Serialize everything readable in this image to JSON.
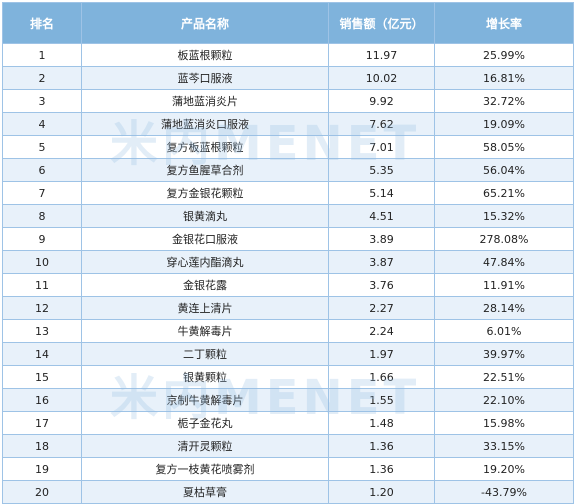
{
  "table": {
    "headers": [
      "排名",
      "产品名称",
      "销售额（亿元）",
      "增长率"
    ],
    "rows": [
      {
        "rank": "1",
        "name": "板蓝根颗粒",
        "sales": "11.97",
        "growth": "25.99%"
      },
      {
        "rank": "2",
        "name": "蓝芩口服液",
        "sales": "10.02",
        "growth": "16.81%"
      },
      {
        "rank": "3",
        "name": "蒲地蓝消炎片",
        "sales": "9.92",
        "growth": "32.72%"
      },
      {
        "rank": "4",
        "name": "蒲地蓝消炎口服液",
        "sales": "7.62",
        "growth": "19.09%"
      },
      {
        "rank": "5",
        "name": "复方板蓝根颗粒",
        "sales": "7.01",
        "growth": "58.05%"
      },
      {
        "rank": "6",
        "name": "复方鱼腥草合剂",
        "sales": "5.35",
        "growth": "56.04%"
      },
      {
        "rank": "7",
        "name": "复方金银花颗粒",
        "sales": "5.14",
        "growth": "65.21%"
      },
      {
        "rank": "8",
        "name": "银黄滴丸",
        "sales": "4.51",
        "growth": "15.32%"
      },
      {
        "rank": "9",
        "name": "金银花口服液",
        "sales": "3.89",
        "growth": "278.08%"
      },
      {
        "rank": "10",
        "name": "穿心莲内酯滴丸",
        "sales": "3.87",
        "growth": "47.84%"
      },
      {
        "rank": "11",
        "name": "金银花露",
        "sales": "3.76",
        "growth": "11.91%"
      },
      {
        "rank": "12",
        "name": "黄连上清片",
        "sales": "2.27",
        "growth": "28.14%"
      },
      {
        "rank": "13",
        "name": "牛黄解毒片",
        "sales": "2.24",
        "growth": "6.01%"
      },
      {
        "rank": "14",
        "name": "二丁颗粒",
        "sales": "1.97",
        "growth": "39.97%"
      },
      {
        "rank": "15",
        "name": "银黄颗粒",
        "sales": "1.66",
        "growth": "22.51%"
      },
      {
        "rank": "16",
        "name": "京制牛黄解毒片",
        "sales": "1.55",
        "growth": "22.10%"
      },
      {
        "rank": "17",
        "name": "栀子金花丸",
        "sales": "1.48",
        "growth": "15.98%"
      },
      {
        "rank": "18",
        "name": "清开灵颗粒",
        "sales": "1.36",
        "growth": "33.15%"
      },
      {
        "rank": "19",
        "name": "复方一枝黄花喷雾剂",
        "sales": "1.36",
        "growth": "19.20%"
      },
      {
        "rank": "20",
        "name": "夏枯草膏",
        "sales": "1.20",
        "growth": "-43.79%"
      }
    ]
  },
  "watermark": {
    "text": "米内MENET"
  },
  "colors": {
    "header_bg": "#7fb3dc",
    "header_text": "#ffffff",
    "stripe_bg": "#e8f1fa",
    "border": "#9ec3e6"
  }
}
